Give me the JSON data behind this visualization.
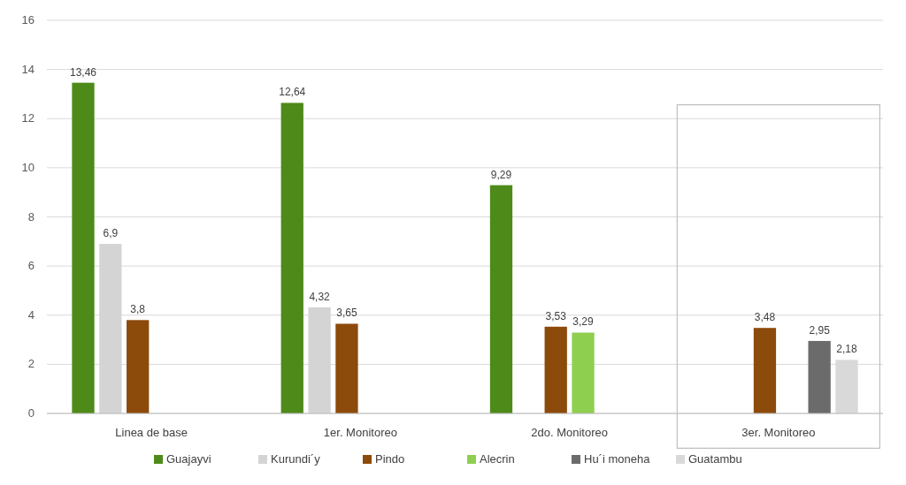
{
  "chart_data": {
    "type": "bar",
    "categories": [
      "Linea de base",
      "1er. Monitoreo",
      "2do. Monitoreo",
      "3er. Monitoreo"
    ],
    "series": [
      {
        "name": "Guajayvi",
        "color": "#4e8a1a",
        "values": [
          13.46,
          12.64,
          9.29,
          null
        ],
        "value_labels": [
          "13,46",
          "12,64",
          "9,29",
          null
        ]
      },
      {
        "name": "Kurundi´y",
        "color": "#d4d4d4",
        "values": [
          6.9,
          4.32,
          null,
          null
        ],
        "value_labels": [
          "6,9",
          "4,32",
          null,
          null
        ]
      },
      {
        "name": "Pindo",
        "color": "#8c4a0b",
        "values": [
          3.8,
          3.65,
          3.53,
          3.48
        ],
        "value_labels": [
          "3,8",
          "3,65",
          "3,53",
          "3,48"
        ]
      },
      {
        "name": "Alecrin",
        "color": "#8fcf4f",
        "values": [
          null,
          null,
          3.29,
          null
        ],
        "value_labels": [
          null,
          null,
          "3,29",
          null
        ]
      },
      {
        "name": "Hu´i moneha",
        "color": "#6b6b6b",
        "values": [
          null,
          null,
          null,
          2.95
        ],
        "value_labels": [
          null,
          null,
          null,
          "2,95"
        ]
      },
      {
        "name": "Guatambu",
        "color": "#d9d9d9",
        "values": [
          null,
          null,
          null,
          2.18
        ],
        "value_labels": [
          null,
          null,
          null,
          "2,18"
        ]
      }
    ],
    "ylim": [
      0,
      16
    ],
    "yticks": [
      0,
      2,
      4,
      6,
      8,
      10,
      12,
      14,
      16
    ],
    "grid": "y",
    "legend": "bottom"
  }
}
